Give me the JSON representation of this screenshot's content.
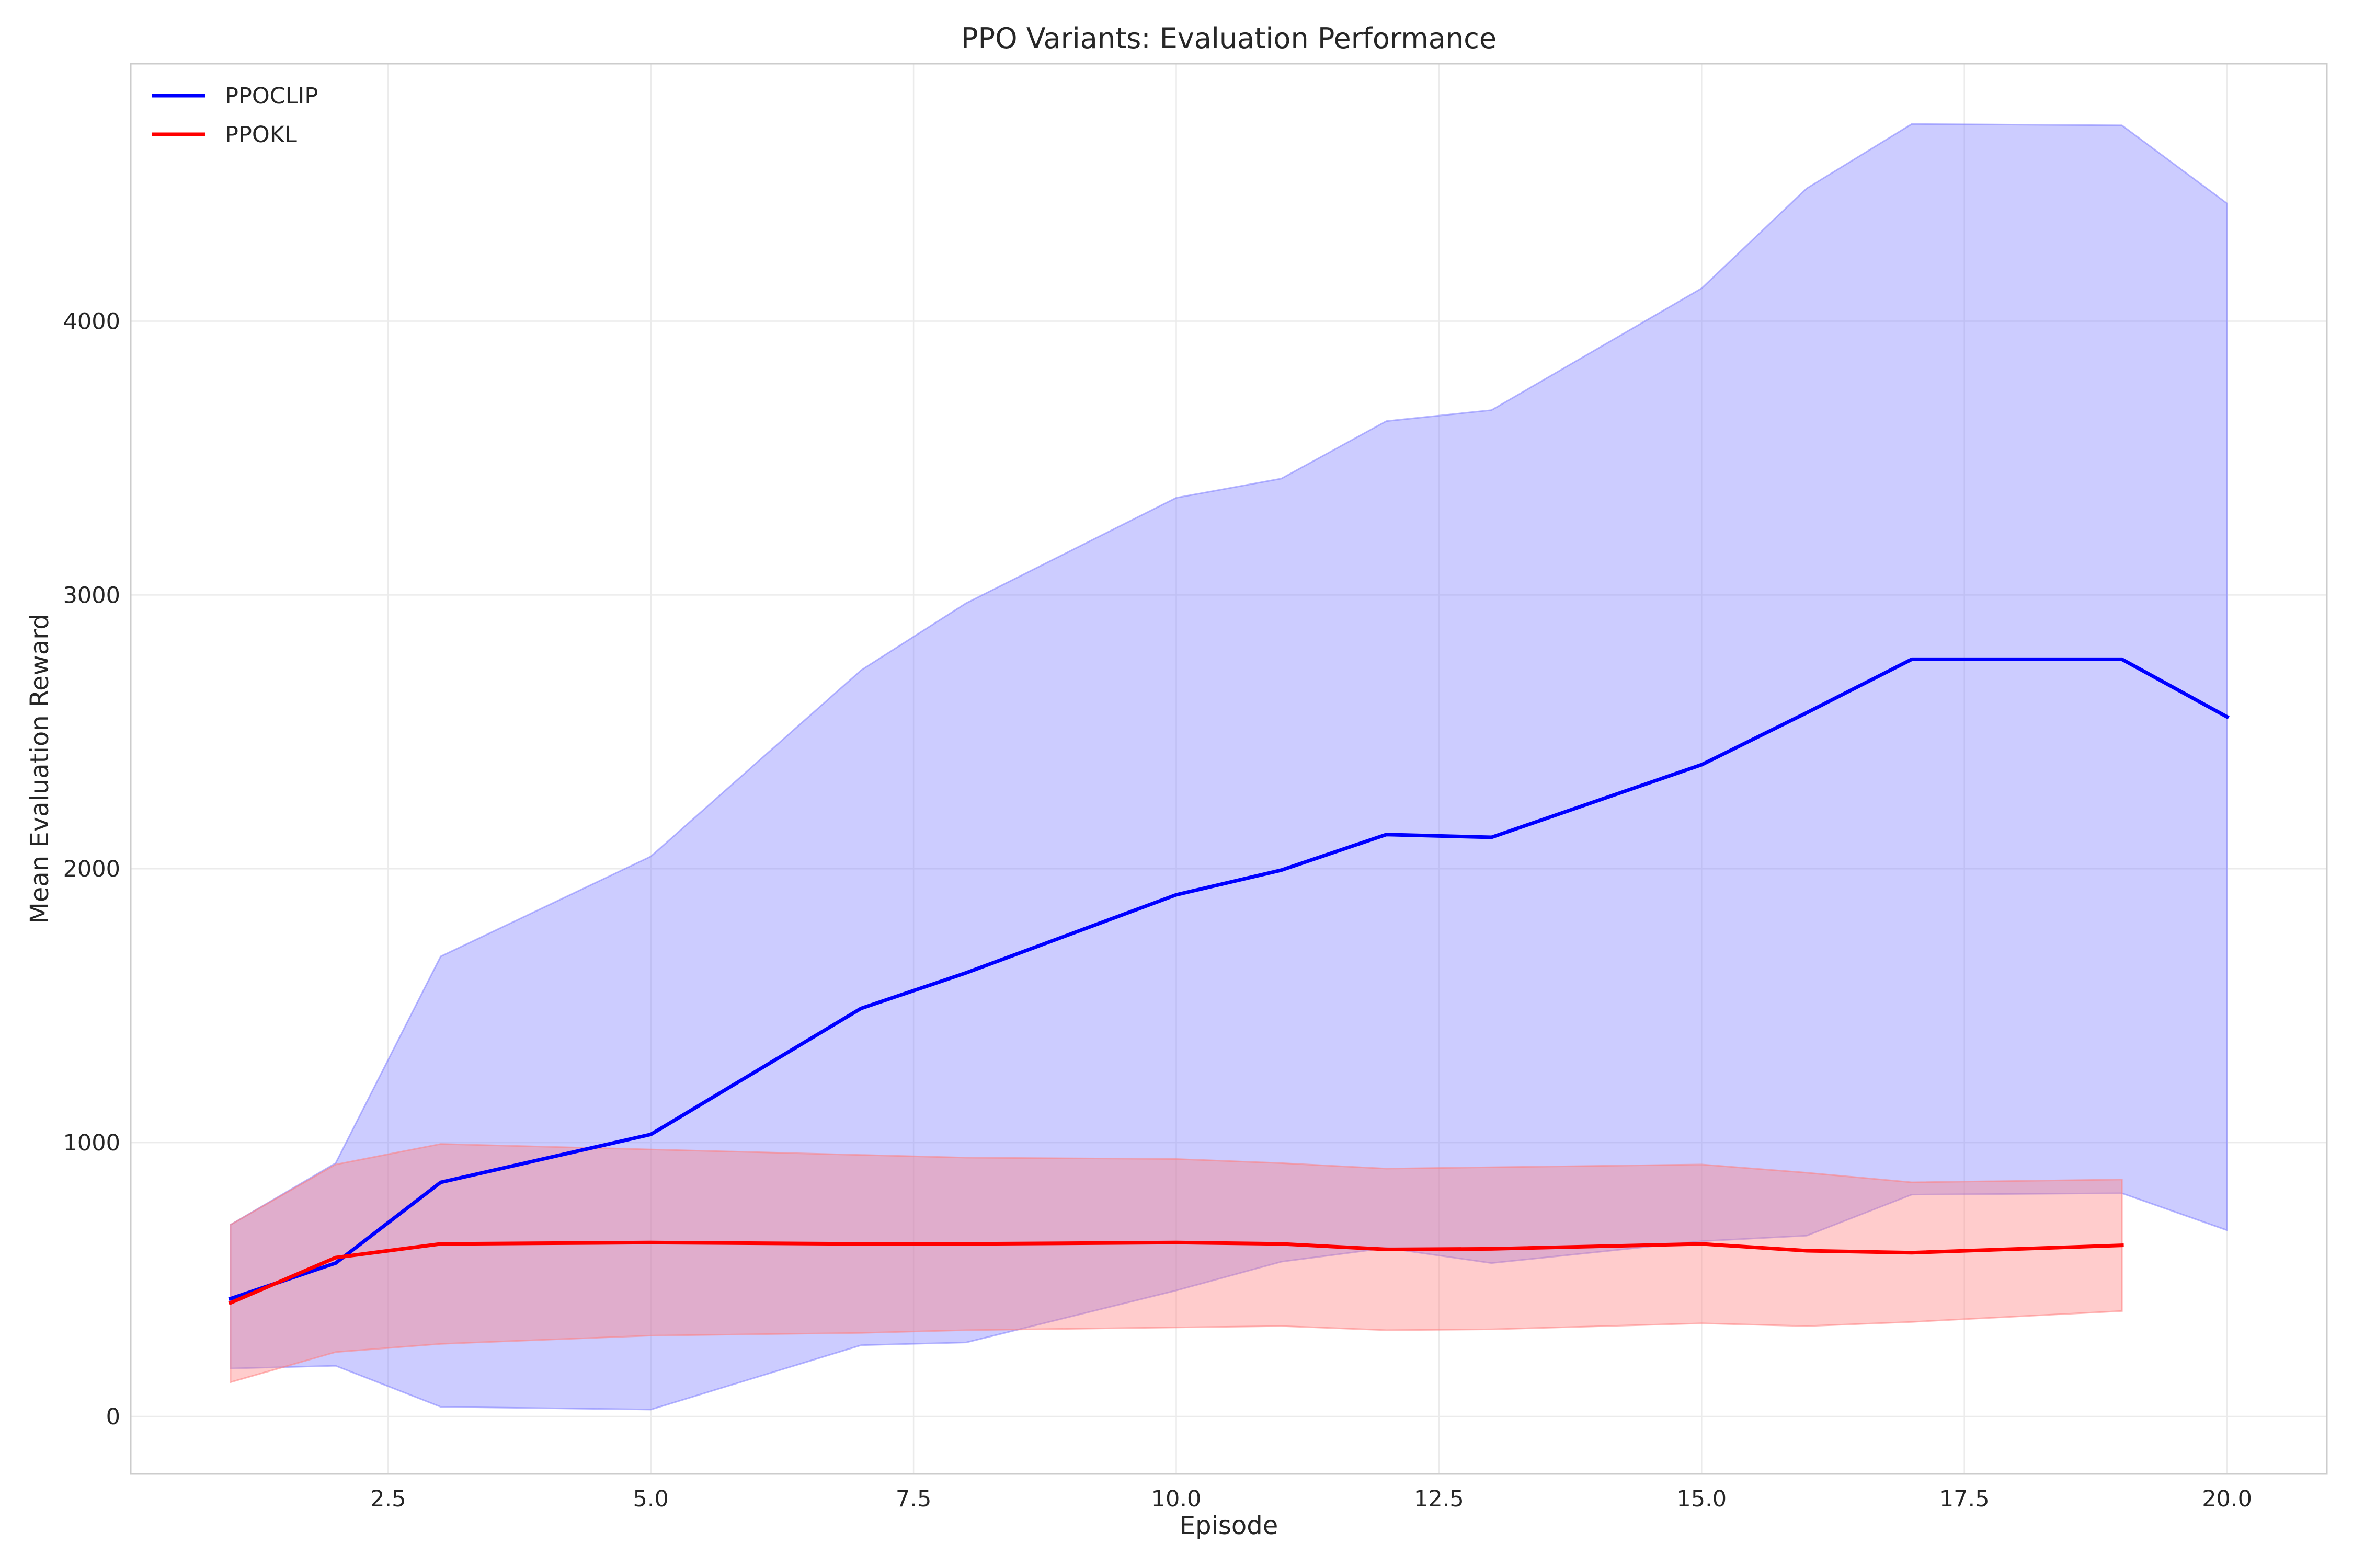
{
  "chart_data": {
    "type": "line",
    "title": "PPO Variants: Evaluation Performance",
    "xlabel": "Episode",
    "ylabel": "Mean Evaluation Reward",
    "xlim": [
      0.05,
      20.95
    ],
    "ylim": [
      -210,
      4940
    ],
    "xticks": [
      2.5,
      5.0,
      7.5,
      10.0,
      12.5,
      15.0,
      17.5,
      20.0
    ],
    "xtick_labels": [
      "2.5",
      "5.0",
      "7.5",
      "10.0",
      "12.5",
      "15.0",
      "17.5",
      "20.0"
    ],
    "yticks": [
      0,
      1000,
      2000,
      3000,
      4000
    ],
    "ytick_labels": [
      "0",
      "1000",
      "2000",
      "3000",
      "4000"
    ],
    "grid": true,
    "legend_position": "top-left",
    "series": [
      {
        "name": "PPOCLIP",
        "color": "#0000ff",
        "band_color": "#8080ff",
        "x": [
          1,
          2,
          3,
          5,
          7,
          8,
          10,
          11,
          12,
          13,
          15,
          16,
          17,
          19,
          20
        ],
        "y": [
          430,
          560,
          855,
          1030,
          1490,
          1620,
          1905,
          1995,
          2125,
          2115,
          2380,
          2570,
          2765,
          2765,
          2555
        ],
        "upper": [
          700,
          925,
          1680,
          2045,
          2725,
          2970,
          3355,
          3425,
          3635,
          3675,
          4120,
          4485,
          4720,
          4715,
          4430
        ],
        "lower": [
          175,
          185,
          35,
          25,
          260,
          270,
          460,
          565,
          615,
          560,
          640,
          660,
          810,
          815,
          680
        ]
      },
      {
        "name": "PPOKL",
        "color": "#ff0000",
        "band_color": "#ff8080",
        "x": [
          1,
          2,
          3,
          5,
          7,
          8,
          10,
          11,
          12,
          13,
          15,
          16,
          17,
          19
        ],
        "y": [
          415,
          580,
          630,
          635,
          630,
          630,
          635,
          630,
          610,
          612,
          630,
          605,
          598,
          625
        ],
        "upper": [
          700,
          920,
          995,
          975,
          955,
          945,
          940,
          925,
          905,
          910,
          920,
          890,
          855,
          865
        ],
        "lower": [
          125,
          235,
          265,
          295,
          305,
          315,
          325,
          330,
          315,
          318,
          340,
          330,
          345,
          385
        ]
      }
    ]
  }
}
